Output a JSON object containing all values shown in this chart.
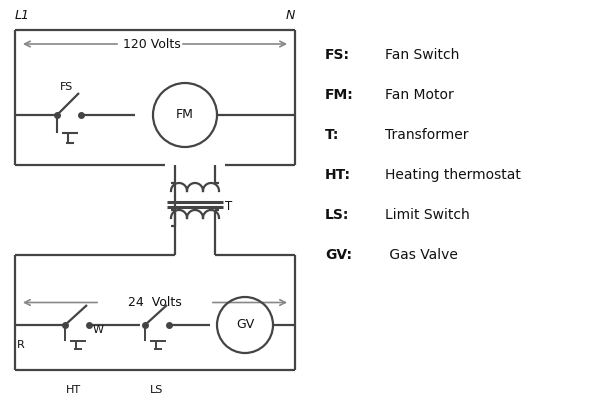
{
  "background_color": "#ffffff",
  "line_color": "#444444",
  "text_color": "#111111",
  "arrow_color": "#888888",
  "legend": [
    [
      "FS:",
      "Fan Switch"
    ],
    [
      "FM:",
      "Fan Motor"
    ],
    [
      "T:",
      "Transformer"
    ],
    [
      "HT:",
      "Heating thermostat"
    ],
    [
      "LS:",
      "Limit Switch"
    ],
    [
      "GV:",
      " Gas Valve"
    ]
  ],
  "L1_label": "L1",
  "N_label": "N",
  "volts120": "120 Volts",
  "volts24": "24  Volts",
  "T_label": "T",
  "R_label": "R",
  "W_label": "W",
  "HT_label": "HT",
  "LS_label": "LS",
  "FS_label": "FS",
  "FM_label": "FM",
  "GV_label": "GV"
}
